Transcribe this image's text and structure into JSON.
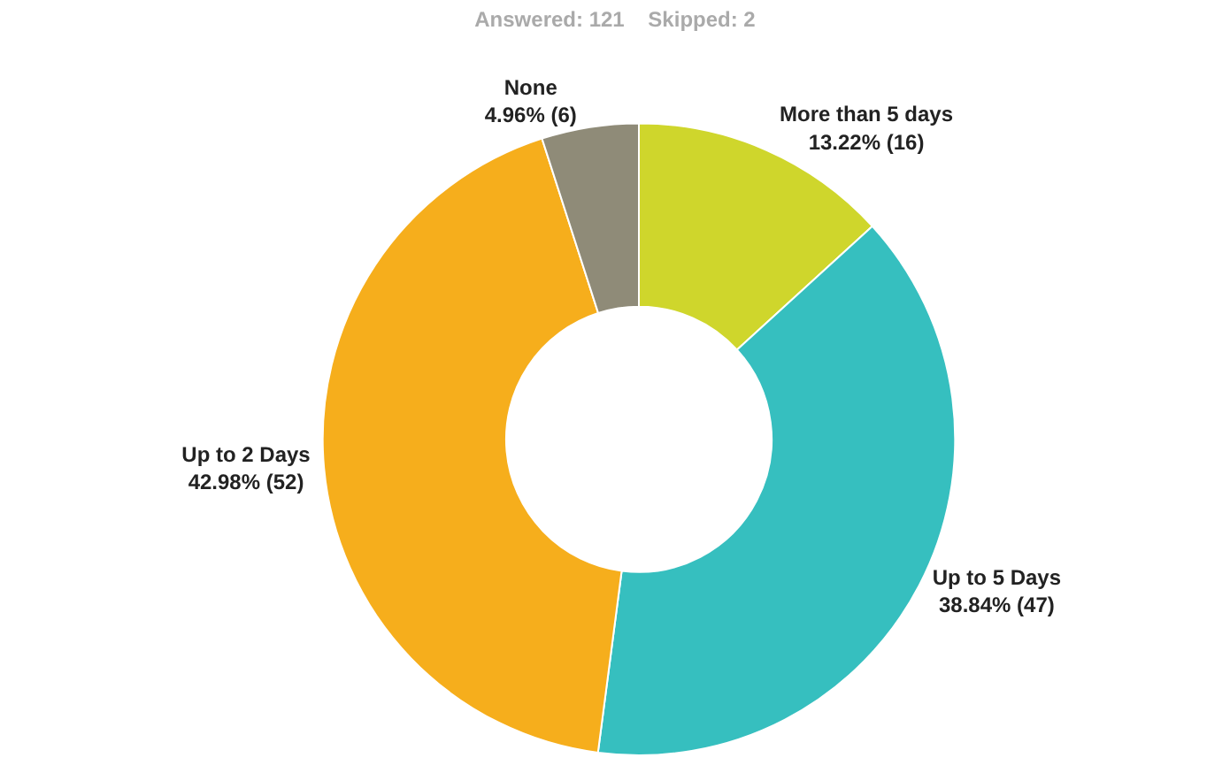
{
  "chart_data": {
    "type": "donut",
    "title": "Answered: 121    Skipped: 2",
    "categories": [
      "More than 5 days",
      "Up to 5 Days",
      "Up to 2 Days",
      "None"
    ],
    "values": [
      16,
      47,
      52,
      6
    ],
    "value_labels": [
      "13.22% (16)",
      "38.84% (47)",
      "42.98% (52)",
      "4.96% (6)"
    ],
    "colors": [
      "#cfd62c",
      "#36bfbf",
      "#f6ae1c",
      "#8f8b78"
    ],
    "legend": false
  }
}
